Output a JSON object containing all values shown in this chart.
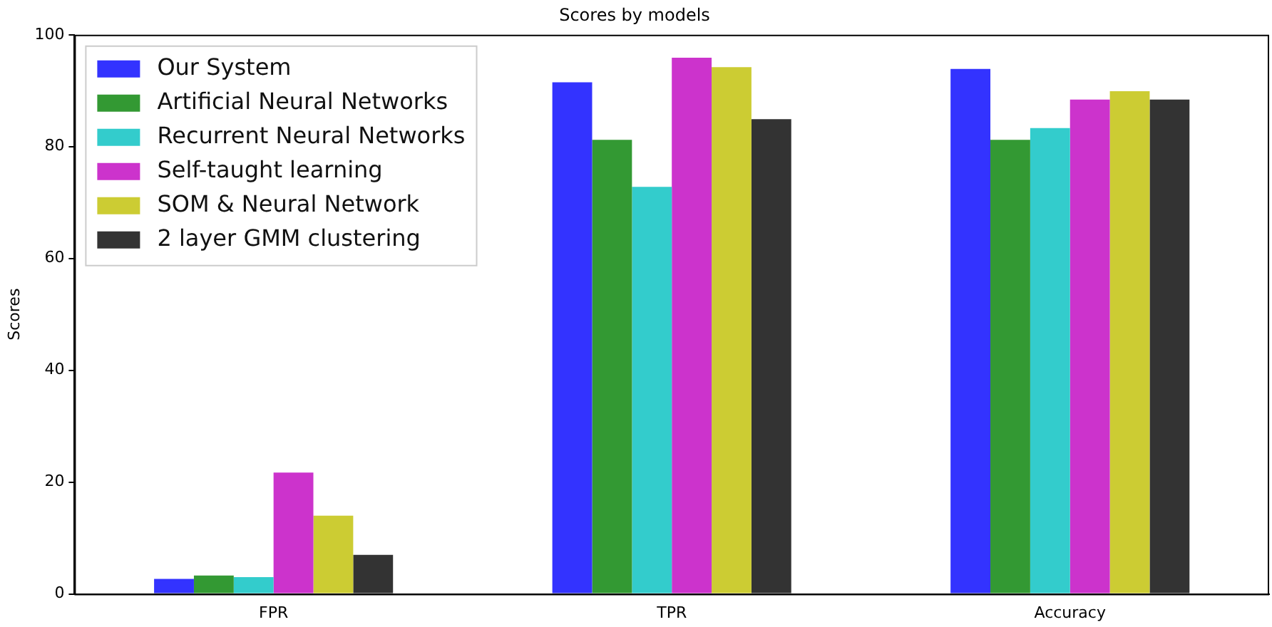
{
  "chart_data": {
    "type": "bar",
    "title": "Scores by models",
    "ylabel": "Scores",
    "categories": [
      "FPR",
      "TPR",
      "Accuracy"
    ],
    "series": [
      {
        "name": "Our System",
        "color": "#3333ff",
        "values": [
          2.7,
          91.5,
          93.9
        ]
      },
      {
        "name": "Artificial Neural Networks",
        "color": "#339933",
        "values": [
          3.3,
          81.2,
          81.2
        ]
      },
      {
        "name": "Recurrent Neural Networks",
        "color": "#33cccc",
        "values": [
          3.0,
          72.8,
          83.3
        ]
      },
      {
        "name": "Self-taught learning",
        "color": "#cc33cc",
        "values": [
          21.7,
          95.9,
          88.4
        ]
      },
      {
        "name": "SOM & Neural Network",
        "color": "#cccc33",
        "values": [
          14.0,
          94.2,
          89.9
        ]
      },
      {
        "name": "2 layer GMM clustering",
        "color": "#333333",
        "values": [
          7.0,
          84.9,
          88.4
        ]
      }
    ],
    "ylim": [
      0,
      100
    ],
    "yticks": [
      0,
      20,
      40,
      60,
      80,
      100
    ],
    "grid": false,
    "legend": "top left"
  }
}
